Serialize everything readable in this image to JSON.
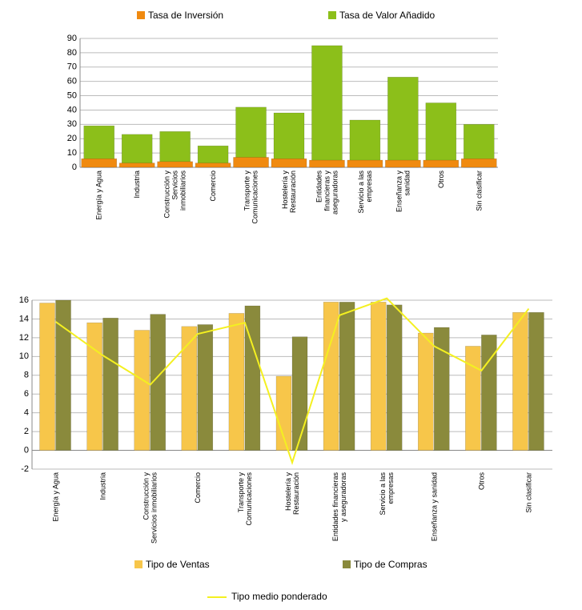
{
  "chart_data": [
    {
      "type": "bar",
      "categories": [
        "Energía y Agua",
        "Industria",
        "Construcción y Servicios inmobiliarios",
        "Comercio",
        "Transporte y Comunicaciones",
        "Hostelería y Restauración",
        "Entidades financieras y aseguradoras",
        "Servicio a las empresas",
        "Enseñanza y sanidad",
        "Otros",
        "Sin clasificar"
      ],
      "series": [
        {
          "name": "Tasa de Valor Añadido",
          "color": "#8cbf1a",
          "values": [
            29,
            23,
            25,
            15,
            42,
            38,
            85,
            33,
            63,
            45,
            30
          ]
        },
        {
          "name": "Tasa de Inversión",
          "color": "#f08a10",
          "values": [
            6,
            3,
            4,
            3,
            7,
            6,
            5,
            5,
            5,
            5,
            6
          ]
        }
      ],
      "ylim": [
        0,
        90
      ],
      "yticks": [
        0,
        10,
        20,
        30,
        40,
        50,
        60,
        70,
        80,
        90
      ],
      "grid": true
    },
    {
      "type": "bar-line",
      "categories": [
        "Energía y Agua",
        "Industria",
        "Construcción y Servicios inmobiliarios",
        "Comercio",
        "Transporte y Comunicaciones",
        "Hostelería y Restauración",
        "Entidades financieras y aseguradoras",
        "Servicio a las empresas",
        "Enseñanza y sanidad",
        "Otros",
        "Sin clasificar"
      ],
      "series": [
        {
          "name": "Tipo de Ventas",
          "color": "#f7c64a",
          "values": [
            15.7,
            13.6,
            12.8,
            13.2,
            14.6,
            7.9,
            15.8,
            15.8,
            12.5,
            11.1,
            14.7
          ]
        },
        {
          "name": "Tipo de Compras",
          "color": "#8a8a3c",
          "values": [
            16,
            14.1,
            14.5,
            13.4,
            15.4,
            12.1,
            15.8,
            15.5,
            13.1,
            12.3,
            14.7
          ]
        },
        {
          "name": "Tipo medio ponderado",
          "color": "#f4f020",
          "type": "line",
          "values": [
            13.7,
            10.1,
            7.0,
            12.4,
            13.6,
            -1.3,
            14.4,
            16.2,
            11.1,
            8.5,
            15.1
          ]
        }
      ],
      "ylim": [
        -2,
        16
      ],
      "yticks": [
        -2,
        0,
        2,
        4,
        6,
        8,
        10,
        12,
        14,
        16
      ],
      "grid": true
    }
  ]
}
